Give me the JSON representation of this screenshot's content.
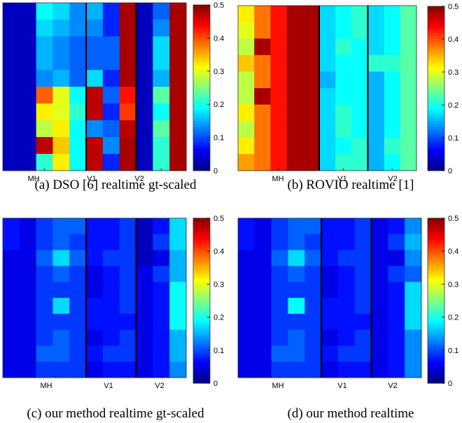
{
  "colormap": "jet",
  "chart_data": [
    {
      "type": "heatmap",
      "caption": "(a) DSO [6] realtime gt-scaled",
      "groups": [
        "MH",
        "V1",
        "V2"
      ],
      "columns_per_group": [
        5,
        3,
        3
      ],
      "rows": 10,
      "colorbar_range": [
        0,
        0.5
      ],
      "colorbar_ticks": [
        "0",
        "0.1",
        "0.2",
        "0.3",
        "0.4",
        "0.5"
      ],
      "values": [
        [
          0.03,
          0.03,
          0.19,
          0.17,
          0.13,
          0.15,
          0.08,
          0.48,
          0.03,
          0.11,
          0.48
        ],
        [
          0.03,
          0.03,
          0.17,
          0.15,
          0.13,
          0.13,
          0.08,
          0.48,
          0.03,
          0.13,
          0.48
        ],
        [
          0.03,
          0.03,
          0.15,
          0.13,
          0.11,
          0.11,
          0.11,
          0.48,
          0.03,
          0.17,
          0.48
        ],
        [
          0.03,
          0.03,
          0.15,
          0.13,
          0.11,
          0.11,
          0.11,
          0.48,
          0.03,
          0.17,
          0.48
        ],
        [
          0.03,
          0.03,
          0.13,
          0.15,
          0.11,
          0.17,
          0.08,
          0.48,
          0.03,
          0.15,
          0.48
        ],
        [
          0.03,
          0.03,
          0.39,
          0.3,
          0.19,
          0.47,
          0.11,
          0.43,
          0.03,
          0.23,
          0.48
        ],
        [
          0.03,
          0.03,
          0.32,
          0.3,
          0.21,
          0.47,
          0.08,
          0.41,
          0.03,
          0.19,
          0.48
        ],
        [
          0.03,
          0.03,
          0.28,
          0.32,
          0.19,
          0.13,
          0.11,
          0.47,
          0.03,
          0.23,
          0.48
        ],
        [
          0.03,
          0.03,
          0.47,
          0.34,
          0.19,
          0.47,
          0.13,
          0.48,
          0.03,
          0.21,
          0.48
        ],
        [
          0.03,
          0.03,
          0.21,
          0.32,
          0.19,
          0.47,
          0.08,
          0.48,
          0.03,
          0.21,
          0.48
        ]
      ]
    },
    {
      "type": "heatmap",
      "caption": "(b) ROVIO realtime [1]",
      "groups": [
        "MH",
        "V1",
        "V2"
      ],
      "columns_per_group": [
        5,
        3,
        3
      ],
      "rows": 10,
      "colorbar_range": [
        0,
        0.5
      ],
      "colorbar_ticks": [
        "0",
        "0.1",
        "0.2",
        "0.3",
        "0.4",
        "0.5"
      ],
      "values": [
        [
          0.32,
          0.38,
          0.43,
          0.48,
          0.48,
          0.17,
          0.19,
          0.21,
          0.17,
          0.19,
          0.23
        ],
        [
          0.3,
          0.38,
          0.43,
          0.48,
          0.48,
          0.17,
          0.19,
          0.21,
          0.17,
          0.19,
          0.23
        ],
        [
          0.28,
          0.48,
          0.43,
          0.48,
          0.48,
          0.17,
          0.21,
          0.19,
          0.17,
          0.19,
          0.23
        ],
        [
          0.34,
          0.38,
          0.43,
          0.48,
          0.48,
          0.17,
          0.19,
          0.19,
          0.21,
          0.21,
          0.23
        ],
        [
          0.28,
          0.38,
          0.43,
          0.48,
          0.48,
          0.15,
          0.19,
          0.19,
          0.15,
          0.19,
          0.23
        ],
        [
          0.28,
          0.48,
          0.43,
          0.48,
          0.48,
          0.17,
          0.19,
          0.19,
          0.15,
          0.19,
          0.23
        ],
        [
          0.32,
          0.38,
          0.43,
          0.48,
          0.48,
          0.17,
          0.21,
          0.19,
          0.15,
          0.19,
          0.23
        ],
        [
          0.28,
          0.38,
          0.43,
          0.48,
          0.48,
          0.17,
          0.21,
          0.19,
          0.15,
          0.19,
          0.23
        ],
        [
          0.32,
          0.38,
          0.43,
          0.48,
          0.48,
          0.17,
          0.19,
          0.21,
          0.15,
          0.21,
          0.23
        ],
        [
          0.36,
          0.38,
          0.43,
          0.48,
          0.48,
          0.17,
          0.21,
          0.21,
          0.15,
          0.19,
          0.23
        ]
      ]
    },
    {
      "type": "heatmap",
      "caption": "(c) our method realtime gt-scaled",
      "groups": [
        "MH",
        "V1",
        "V2"
      ],
      "columns_per_group": [
        5,
        3,
        3
      ],
      "rows": 10,
      "colorbar_range": [
        0,
        0.5
      ],
      "colorbar_ticks": [
        "0",
        "0.1",
        "0.2",
        "0.3",
        "0.4",
        "0.5"
      ],
      "values": [
        [
          0.07,
          0.05,
          0.09,
          0.11,
          0.11,
          0.07,
          0.07,
          0.09,
          0.03,
          0.07,
          0.17
        ],
        [
          0.07,
          0.05,
          0.09,
          0.11,
          0.09,
          0.07,
          0.07,
          0.09,
          0.03,
          0.09,
          0.17
        ],
        [
          0.05,
          0.05,
          0.11,
          0.17,
          0.11,
          0.07,
          0.09,
          0.09,
          0.03,
          0.05,
          0.15
        ],
        [
          0.05,
          0.05,
          0.09,
          0.11,
          0.09,
          0.05,
          0.07,
          0.09,
          0.05,
          0.09,
          0.15
        ],
        [
          0.05,
          0.05,
          0.09,
          0.09,
          0.09,
          0.05,
          0.07,
          0.09,
          0.05,
          0.07,
          0.19
        ],
        [
          0.05,
          0.05,
          0.09,
          0.17,
          0.09,
          0.07,
          0.07,
          0.09,
          0.05,
          0.07,
          0.19
        ],
        [
          0.05,
          0.05,
          0.09,
          0.09,
          0.09,
          0.07,
          0.07,
          0.07,
          0.05,
          0.07,
          0.19
        ],
        [
          0.05,
          0.05,
          0.09,
          0.11,
          0.09,
          0.05,
          0.07,
          0.09,
          0.05,
          0.07,
          0.15
        ],
        [
          0.05,
          0.05,
          0.11,
          0.11,
          0.09,
          0.07,
          0.09,
          0.09,
          0.05,
          0.07,
          0.15
        ],
        [
          0.05,
          0.05,
          0.09,
          0.09,
          0.09,
          0.05,
          0.07,
          0.07,
          0.05,
          0.07,
          0.13
        ]
      ]
    },
    {
      "type": "heatmap",
      "caption": "(d) our method realtime",
      "groups": [
        "MH",
        "V1",
        "V2"
      ],
      "columns_per_group": [
        5,
        3,
        3
      ],
      "rows": 10,
      "colorbar_range": [
        0,
        0.5
      ],
      "colorbar_ticks": [
        "0",
        "0.1",
        "0.2",
        "0.3",
        "0.4",
        "0.5"
      ],
      "values": [
        [
          0.07,
          0.05,
          0.09,
          0.11,
          0.11,
          0.07,
          0.07,
          0.09,
          0.05,
          0.07,
          0.13
        ],
        [
          0.07,
          0.05,
          0.09,
          0.11,
          0.09,
          0.07,
          0.07,
          0.09,
          0.05,
          0.09,
          0.15
        ],
        [
          0.05,
          0.05,
          0.11,
          0.17,
          0.11,
          0.07,
          0.09,
          0.09,
          0.05,
          0.05,
          0.13
        ],
        [
          0.05,
          0.05,
          0.09,
          0.11,
          0.09,
          0.05,
          0.07,
          0.09,
          0.05,
          0.09,
          0.11
        ],
        [
          0.05,
          0.05,
          0.09,
          0.09,
          0.09,
          0.05,
          0.07,
          0.09,
          0.05,
          0.07,
          0.17
        ],
        [
          0.05,
          0.05,
          0.09,
          0.19,
          0.09,
          0.07,
          0.07,
          0.09,
          0.05,
          0.07,
          0.17
        ],
        [
          0.05,
          0.05,
          0.09,
          0.09,
          0.09,
          0.07,
          0.07,
          0.07,
          0.05,
          0.07,
          0.17
        ],
        [
          0.05,
          0.05,
          0.09,
          0.11,
          0.09,
          0.05,
          0.07,
          0.09,
          0.05,
          0.07,
          0.13
        ],
        [
          0.05,
          0.05,
          0.11,
          0.11,
          0.09,
          0.07,
          0.09,
          0.09,
          0.05,
          0.07,
          0.13
        ],
        [
          0.05,
          0.05,
          0.09,
          0.09,
          0.09,
          0.05,
          0.07,
          0.07,
          0.05,
          0.07,
          0.13
        ]
      ]
    }
  ]
}
